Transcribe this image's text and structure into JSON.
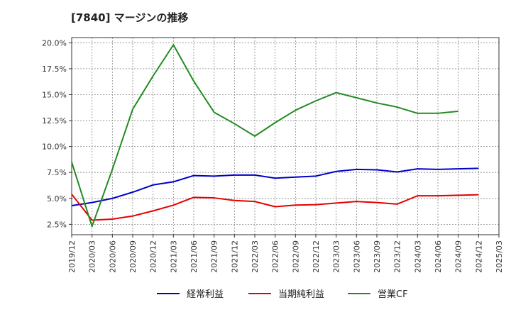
{
  "chart_data": {
    "type": "line",
    "title": "[7840]  マージンの推移",
    "x": [
      "2019/12",
      "2020/03",
      "2020/06",
      "2020/09",
      "2020/12",
      "2021/03",
      "2021/06",
      "2021/09",
      "2021/12",
      "2022/03",
      "2022/06",
      "2022/09",
      "2022/12",
      "2023/03",
      "2023/06",
      "2023/09",
      "2023/12",
      "2024/03",
      "2024/06",
      "2024/09",
      "2024/12",
      "2025/03"
    ],
    "ylim": [
      1.5,
      20.5
    ],
    "yticks": [
      "2.5%",
      "5.0%",
      "7.5%",
      "10.0%",
      "12.5%",
      "15.0%",
      "17.5%",
      "20.0%"
    ],
    "ytick_values": [
      2.5,
      5.0,
      7.5,
      10.0,
      12.5,
      15.0,
      17.5,
      20.0
    ],
    "grid": true,
    "legend_position": "bottom",
    "series": [
      {
        "name": "経常利益",
        "color": "#0000cc",
        "values": [
          4.3,
          4.6,
          5.0,
          5.6,
          6.3,
          6.6,
          7.2,
          7.15,
          7.25,
          7.25,
          6.95,
          7.05,
          7.15,
          7.6,
          7.8,
          7.75,
          7.55,
          7.85,
          7.8,
          7.85,
          7.9,
          null
        ]
      },
      {
        "name": "当期純利益",
        "color": "#e60000",
        "values": [
          5.4,
          2.9,
          3.0,
          3.3,
          3.8,
          4.35,
          5.1,
          5.05,
          4.8,
          4.7,
          4.2,
          4.35,
          4.4,
          4.55,
          4.7,
          4.6,
          4.45,
          5.25,
          5.25,
          5.3,
          5.35,
          null
        ]
      },
      {
        "name": "営業CF",
        "color": "#228b22",
        "values": [
          8.5,
          2.3,
          7.8,
          13.6,
          16.8,
          19.8,
          16.3,
          13.3,
          12.2,
          11.0,
          12.3,
          13.5,
          14.4,
          15.2,
          14.7,
          14.2,
          13.8,
          13.2,
          13.2,
          13.4,
          null,
          null
        ]
      }
    ]
  }
}
